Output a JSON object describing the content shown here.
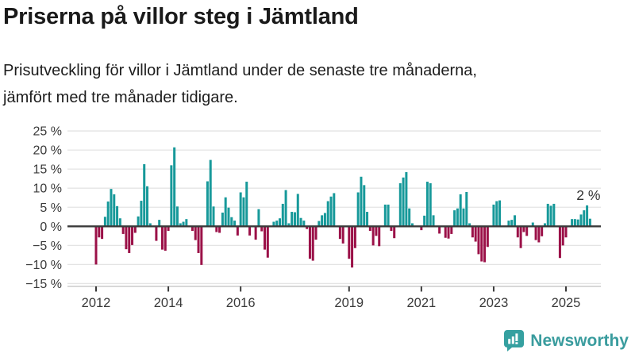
{
  "header": {
    "title": "Priserna på villor steg i Jämtland",
    "subtitle_lines": [
      "Prisutveckling för villor i Jämtland under de senaste tre månaderna,",
      "jämfört med tre månader tidigare."
    ]
  },
  "chart_data": {
    "type": "bar",
    "title": "Priserna på villor steg i Jämtland",
    "subtitle": "Prisutveckling för villor i Jämtland under de senaste tre månaderna, jämfört med tre månader tidigare.",
    "unit": "%",
    "frequency": "monthly",
    "start_month": "2012-01",
    "values": [
      -10.0,
      -2.9,
      -3.3,
      2.5,
      6.5,
      9.8,
      8.4,
      5.3,
      2.1,
      -2.0,
      -6.0,
      -7.0,
      -4.9,
      -1.7,
      2.6,
      6.7,
      16.3,
      10.5,
      0.8,
      0.0,
      -3.8,
      1.7,
      -6.1,
      -6.4,
      -1.2,
      16.0,
      20.7,
      5.2,
      0.8,
      1.2,
      1.9,
      0.0,
      -1.2,
      -3.6,
      -7.0,
      -10.1,
      0.0,
      11.8,
      17.4,
      5.2,
      -1.5,
      -1.7,
      3.6,
      7.6,
      4.9,
      2.4,
      1.5,
      -2.4,
      8.9,
      7.6,
      11.7,
      -2.4,
      0.0,
      -3.5,
      4.5,
      -1.3,
      -6.1,
      -8.2,
      0.0,
      1.2,
      1.5,
      2.1,
      5.9,
      9.5,
      0.8,
      3.8,
      3.7,
      8.5,
      2.2,
      1.5,
      -0.7,
      -8.5,
      -9.0,
      -3.5,
      1.4,
      2.9,
      3.5,
      6.6,
      7.8,
      8.7,
      0.0,
      -3.3,
      -4.5,
      0.0,
      -8.5,
      -10.8,
      -5.7,
      8.9,
      13.0,
      10.8,
      3.8,
      -1.2,
      -5.0,
      -2.5,
      -5.2,
      0.0,
      5.7,
      5.7,
      -1.2,
      -3.1,
      0.0,
      11.3,
      12.8,
      14.2,
      4.7,
      0.8,
      0.0,
      0.0,
      -1.0,
      2.8,
      11.7,
      11.3,
      2.9,
      0.0,
      -1.9,
      0.0,
      -3.0,
      -3.2,
      -2.0,
      4.2,
      4.7,
      8.4,
      4.7,
      9.0,
      0.8,
      -2.9,
      -4.0,
      -7.3,
      -9.2,
      -9.4,
      -5.4,
      0.0,
      5.7,
      6.6,
      6.8,
      0.0,
      0.0,
      1.5,
      1.7,
      2.9,
      -2.9,
      -5.7,
      -1.5,
      -2.5,
      0.0,
      1.0,
      -3.6,
      -4.2,
      -2.6,
      0.8,
      5.9,
      5.4,
      5.9,
      0.0,
      -8.3,
      -5.0,
      -2.9,
      0.0,
      1.9,
      1.9,
      1.8,
      3.1,
      4.2,
      5.5,
      2.0
    ],
    "ylim": [
      -15,
      25
    ],
    "ytick_values": [
      25,
      20,
      15,
      10,
      5,
      0,
      -5,
      -10,
      -15
    ],
    "ytick_labels": [
      "25 %",
      "20 %",
      "15 %",
      "10 %",
      "5 %",
      "0 %",
      "−5 %",
      "−10 %",
      "−15 %"
    ],
    "xtick_years": [
      2012,
      2014,
      2016,
      2019,
      2021,
      2023,
      2025
    ],
    "grid": true,
    "legend": "none",
    "last_value_label": "2 %",
    "colors": {
      "positive": "#17999a",
      "negative": "#9b1148",
      "zero_line": "#3a3a3a",
      "grid_line": "#e4e4e4",
      "axis_line": "#cccccc",
      "axis_text": "#3a3a3a"
    }
  },
  "footer": {
    "brand": "Newsworthy"
  }
}
